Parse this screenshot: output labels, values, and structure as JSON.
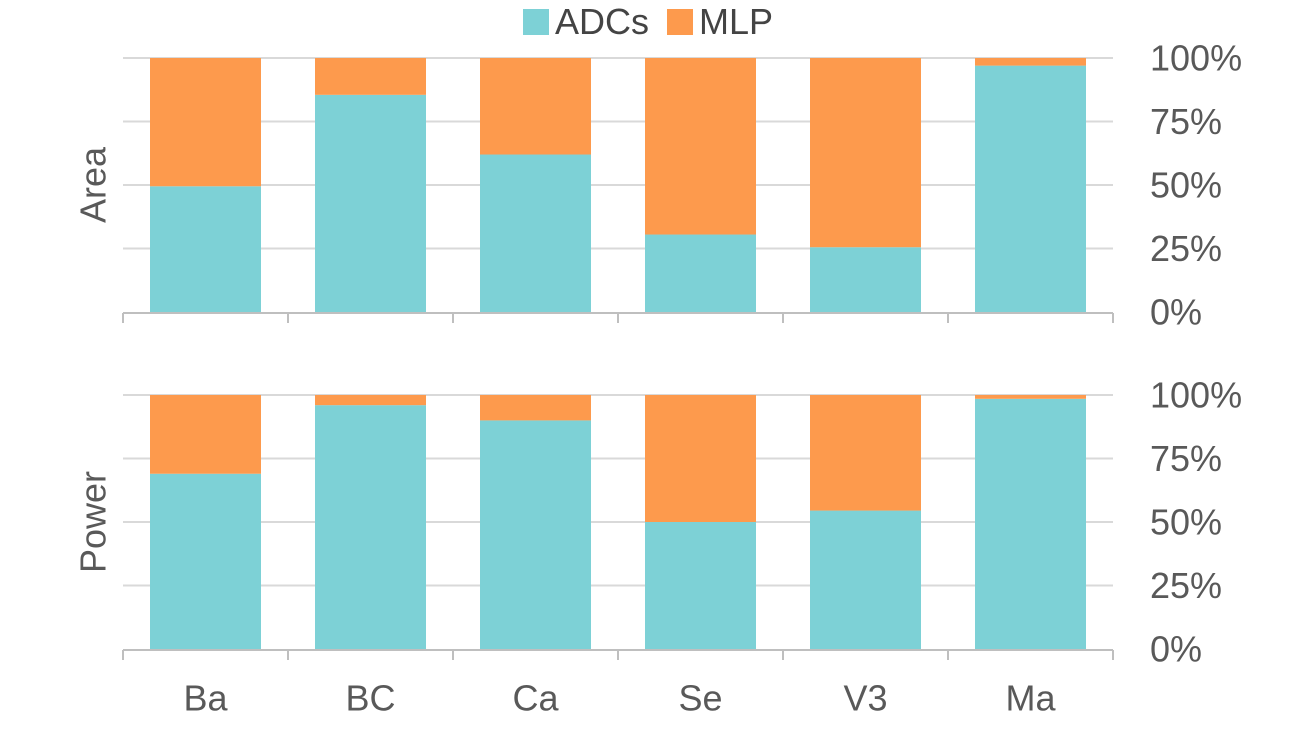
{
  "chart_data": {
    "type": "stacked-bar-100",
    "categories": [
      "Ba",
      "BC",
      "Ca",
      "Se",
      "V3",
      "Ma"
    ],
    "legend": [
      {
        "name": "ADCs",
        "color": "#7dd1d6"
      },
      {
        "name": "MLP",
        "color": "#fd9a4d"
      }
    ],
    "y_ticks": [
      "0%",
      "25%",
      "50%",
      "75%",
      "100%"
    ],
    "ylim": [
      0,
      100
    ],
    "panels": [
      {
        "ylabel": "Area",
        "series": [
          {
            "name": "ADCs",
            "values": [
              49.5,
              85.5,
              62,
              30.5,
              25.5,
              97
            ]
          },
          {
            "name": "MLP",
            "values": [
              50.5,
              14.5,
              38,
              69.5,
              74.5,
              3
            ]
          }
        ]
      },
      {
        "ylabel": "Power",
        "series": [
          {
            "name": "ADCs",
            "values": [
              69,
              96,
              90,
              50,
              54.5,
              98.5
            ]
          },
          {
            "name": "MLP",
            "values": [
              31,
              4,
              10,
              50,
              45.5,
              1.5
            ]
          }
        ]
      }
    ]
  }
}
